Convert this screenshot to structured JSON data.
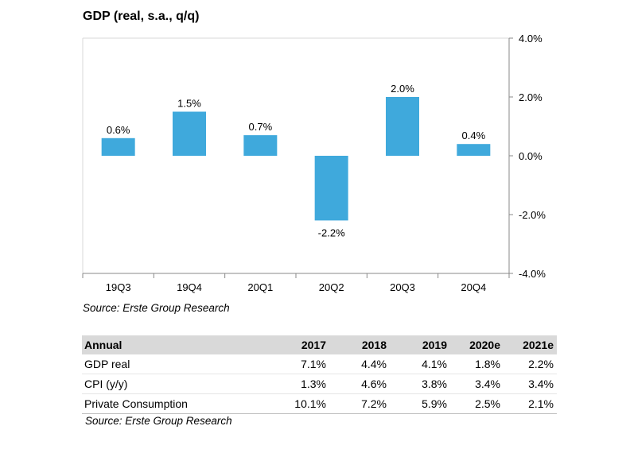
{
  "chart_data": {
    "type": "bar",
    "title": "GDP (real, s.a., q/q)",
    "categories": [
      "19Q3",
      "19Q4",
      "20Q1",
      "20Q2",
      "20Q3",
      "20Q4"
    ],
    "values": [
      0.6,
      1.5,
      0.7,
      -2.2,
      2.0,
      0.4
    ],
    "data_labels": [
      "0.6%",
      "1.5%",
      "0.7%",
      "-2.2%",
      "2.0%",
      "0.4%"
    ],
    "ylim": [
      -4.0,
      4.0
    ],
    "yticks": [
      4.0,
      2.0,
      0.0,
      -2.0,
      -4.0
    ],
    "ytick_labels": [
      "4.0%",
      "2.0%",
      "0.0%",
      "-2.0%",
      "-4.0%"
    ],
    "y_axis_side": "right",
    "grid": false,
    "bar_color": "#3fa9dc",
    "source": "Source: Erste Group Research"
  },
  "table": {
    "headers": [
      "Annual",
      "2017",
      "2018",
      "2019",
      "2020e",
      "2021e"
    ],
    "rows": [
      [
        "GDP real",
        "7.1%",
        "4.4%",
        "4.1%",
        "1.8%",
        "2.2%"
      ],
      [
        "CPI (y/y)",
        "1.3%",
        "4.6%",
        "3.8%",
        "3.4%",
        "3.4%"
      ],
      [
        "Private Consumption",
        "10.1%",
        "7.2%",
        "5.9%",
        "2.5%",
        "2.1%"
      ]
    ],
    "source": "Source: Erste Group Research"
  }
}
